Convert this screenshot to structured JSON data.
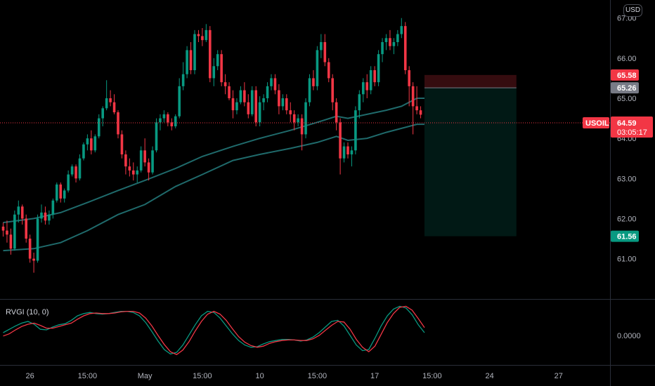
{
  "currency_button": "USD",
  "chart_data": {
    "type": "candlestick",
    "symbol": "USOIL",
    "last_price": "64.59",
    "countdown": "03:05:17",
    "y_ticks": [
      "67.00",
      "66.00",
      "65.00",
      "64.00",
      "63.00",
      "62.00",
      "61.00"
    ],
    "y_tick_values": [
      67,
      66,
      65,
      64,
      63,
      62,
      61
    ],
    "ylim": [
      60.1,
      67.45
    ],
    "x_ticks": [
      "26",
      "15:00",
      "May",
      "15:00",
      "10",
      "15:00",
      "17",
      "15:00",
      "24",
      "27"
    ],
    "x_tick_index": [
      7,
      22,
      37,
      52,
      67,
      82,
      97,
      112,
      127,
      145
    ],
    "candle_count": 110,
    "candles": [
      [
        61.8,
        61.9,
        61.55,
        61.7
      ],
      [
        61.7,
        61.95,
        61.4,
        61.6
      ],
      [
        61.6,
        61.75,
        61.1,
        61.25
      ],
      [
        61.25,
        62.2,
        61.2,
        62.1
      ],
      [
        62.1,
        62.45,
        61.9,
        62.3
      ],
      [
        62.3,
        62.35,
        61.85,
        62.0
      ],
      [
        62.0,
        62.1,
        61.4,
        61.5
      ],
      [
        61.5,
        61.6,
        60.9,
        61.0
      ],
      [
        61.0,
        61.15,
        60.65,
        60.95
      ],
      [
        60.95,
        62.1,
        60.9,
        62.0
      ],
      [
        62.0,
        62.35,
        61.9,
        62.15
      ],
      [
        62.15,
        62.3,
        61.85,
        61.95
      ],
      [
        61.95,
        62.2,
        61.85,
        62.1
      ],
      [
        62.1,
        62.5,
        62.0,
        62.45
      ],
      [
        62.45,
        62.9,
        62.4,
        62.85
      ],
      [
        62.85,
        62.9,
        62.4,
        62.5
      ],
      [
        62.5,
        62.75,
        62.4,
        62.7
      ],
      [
        62.7,
        63.2,
        62.65,
        63.1
      ],
      [
        63.1,
        63.35,
        63.05,
        63.3
      ],
      [
        63.3,
        63.35,
        62.9,
        63.0
      ],
      [
        63.0,
        63.6,
        62.95,
        63.5
      ],
      [
        63.5,
        63.9,
        63.45,
        63.85
      ],
      [
        63.85,
        64.1,
        63.7,
        64.0
      ],
      [
        64.0,
        64.2,
        63.6,
        63.7
      ],
      [
        63.7,
        64.1,
        63.65,
        64.05
      ],
      [
        64.05,
        64.6,
        64.0,
        64.5
      ],
      [
        64.5,
        64.8,
        64.3,
        64.75
      ],
      [
        64.75,
        65.45,
        64.7,
        65.0
      ],
      [
        65.0,
        65.2,
        64.8,
        64.9
      ],
      [
        64.9,
        65.1,
        64.6,
        64.65
      ],
      [
        64.65,
        64.7,
        64.0,
        64.1
      ],
      [
        64.1,
        64.2,
        63.5,
        63.6
      ],
      [
        63.6,
        63.7,
        63.1,
        63.3
      ],
      [
        63.3,
        63.5,
        63.05,
        63.2
      ],
      [
        63.2,
        63.4,
        62.95,
        63.1
      ],
      [
        63.1,
        63.3,
        62.9,
        63.2
      ],
      [
        63.2,
        63.8,
        63.15,
        63.7
      ],
      [
        63.7,
        64.0,
        63.3,
        63.4
      ],
      [
        63.4,
        63.5,
        62.95,
        63.15
      ],
      [
        63.15,
        63.8,
        63.1,
        63.7
      ],
      [
        63.7,
        64.5,
        63.65,
        64.4
      ],
      [
        64.4,
        64.6,
        64.2,
        64.5
      ],
      [
        64.5,
        64.7,
        64.4,
        64.6
      ],
      [
        64.6,
        64.65,
        64.3,
        64.4
      ],
      [
        64.4,
        64.5,
        64.2,
        64.3
      ],
      [
        64.3,
        64.6,
        64.25,
        64.55
      ],
      [
        64.55,
        65.5,
        64.5,
        65.3
      ],
      [
        65.3,
        65.9,
        65.2,
        65.6
      ],
      [
        65.6,
        66.3,
        65.5,
        66.2
      ],
      [
        66.2,
        66.4,
        65.6,
        65.7
      ],
      [
        65.7,
        66.7,
        65.6,
        66.6
      ],
      [
        66.6,
        66.7,
        66.4,
        66.55
      ],
      [
        66.55,
        66.75,
        66.3,
        66.45
      ],
      [
        66.45,
        66.85,
        66.4,
        66.7
      ],
      [
        66.7,
        66.8,
        65.4,
        65.5
      ],
      [
        65.5,
        66.0,
        65.3,
        65.8
      ],
      [
        65.8,
        66.2,
        65.7,
        66.1
      ],
      [
        66.1,
        66.2,
        65.3,
        65.4
      ],
      [
        65.4,
        65.6,
        65.1,
        65.3
      ],
      [
        65.3,
        65.4,
        64.95,
        65.0
      ],
      [
        65.0,
        65.2,
        64.5,
        64.7
      ],
      [
        64.7,
        65.0,
        64.6,
        64.9
      ],
      [
        64.9,
        65.3,
        64.85,
        65.2
      ],
      [
        65.2,
        65.4,
        64.8,
        64.9
      ],
      [
        64.9,
        65.1,
        64.5,
        64.6
      ],
      [
        64.6,
        65.3,
        64.55,
        65.2
      ],
      [
        65.2,
        65.3,
        64.3,
        64.4
      ],
      [
        64.4,
        65.05,
        64.3,
        64.9
      ],
      [
        64.9,
        65.1,
        64.7,
        65.0
      ],
      [
        65.0,
        65.4,
        64.9,
        65.3
      ],
      [
        65.3,
        65.6,
        65.2,
        65.5
      ],
      [
        65.5,
        65.6,
        65.1,
        65.2
      ],
      [
        65.2,
        65.35,
        64.6,
        64.8
      ],
      [
        64.8,
        65.1,
        64.7,
        65.0
      ],
      [
        65.0,
        65.1,
        64.6,
        64.7
      ],
      [
        64.7,
        64.9,
        64.4,
        64.6
      ],
      [
        64.6,
        64.7,
        64.2,
        64.4
      ],
      [
        64.4,
        64.6,
        64.3,
        64.5
      ],
      [
        64.5,
        64.6,
        63.7,
        64.1
      ],
      [
        64.1,
        65.0,
        64.0,
        64.9
      ],
      [
        64.9,
        65.6,
        64.8,
        65.5
      ],
      [
        65.5,
        65.7,
        65.2,
        65.3
      ],
      [
        65.3,
        66.3,
        65.2,
        66.2
      ],
      [
        66.2,
        66.6,
        66.0,
        66.4
      ],
      [
        66.4,
        66.6,
        65.8,
        65.9
      ],
      [
        65.9,
        66.0,
        65.4,
        65.5
      ],
      [
        65.5,
        65.6,
        64.7,
        64.9
      ],
      [
        64.9,
        65.0,
        64.2,
        64.4
      ],
      [
        64.4,
        64.5,
        63.1,
        63.5
      ],
      [
        63.5,
        63.9,
        63.4,
        63.8
      ],
      [
        63.8,
        63.9,
        63.5,
        63.6
      ],
      [
        63.6,
        63.8,
        63.3,
        63.7
      ],
      [
        63.7,
        64.8,
        63.6,
        64.7
      ],
      [
        64.7,
        65.2,
        64.5,
        65.1
      ],
      [
        65.1,
        65.5,
        64.9,
        65.4
      ],
      [
        65.4,
        65.6,
        65.0,
        65.2
      ],
      [
        65.2,
        65.8,
        65.1,
        65.7
      ],
      [
        65.7,
        65.8,
        65.3,
        65.4
      ],
      [
        65.4,
        66.2,
        65.3,
        66.1
      ],
      [
        66.1,
        66.5,
        65.9,
        66.4
      ],
      [
        66.4,
        66.6,
        66.2,
        66.5
      ],
      [
        66.5,
        66.7,
        66.2,
        66.3
      ],
      [
        66.3,
        66.5,
        66.1,
        66.4
      ],
      [
        66.4,
        66.7,
        66.3,
        66.6
      ],
      [
        66.6,
        67.0,
        66.5,
        66.8
      ],
      [
        66.8,
        66.9,
        65.6,
        65.7
      ],
      [
        65.7,
        65.8,
        64.8,
        65.3
      ],
      [
        65.3,
        65.4,
        64.1,
        64.8
      ],
      [
        64.8,
        65.3,
        64.6,
        64.7
      ],
      [
        64.7,
        64.8,
        64.5,
        64.59
      ]
    ],
    "ma_fast": [
      [
        0,
        61.9
      ],
      [
        8,
        62.0
      ],
      [
        15,
        62.15
      ],
      [
        22,
        62.4
      ],
      [
        30,
        62.7
      ],
      [
        37,
        62.95
      ],
      [
        45,
        63.25
      ],
      [
        52,
        63.55
      ],
      [
        60,
        63.8
      ],
      [
        67,
        64.0
      ],
      [
        75,
        64.2
      ],
      [
        82,
        64.4
      ],
      [
        87,
        64.55
      ],
      [
        90,
        64.5
      ],
      [
        95,
        64.6
      ],
      [
        100,
        64.7
      ],
      [
        104,
        64.8
      ],
      [
        108,
        65.0
      ],
      [
        110,
        65.0
      ]
    ],
    "ma_slow": [
      [
        0,
        61.2
      ],
      [
        8,
        61.25
      ],
      [
        15,
        61.4
      ],
      [
        22,
        61.7
      ],
      [
        30,
        62.1
      ],
      [
        37,
        62.35
      ],
      [
        45,
        62.8
      ],
      [
        52,
        63.1
      ],
      [
        60,
        63.45
      ],
      [
        67,
        63.6
      ],
      [
        75,
        63.75
      ],
      [
        82,
        63.9
      ],
      [
        87,
        64.05
      ],
      [
        90,
        63.95
      ],
      [
        95,
        64.0
      ],
      [
        100,
        64.15
      ],
      [
        104,
        64.25
      ],
      [
        108,
        64.35
      ],
      [
        110,
        64.35
      ]
    ],
    "position": {
      "entry": 65.26,
      "stop": 65.58,
      "target": 61.56,
      "start_index": 110,
      "end_index": 134,
      "labels": {
        "stop": "65.58",
        "entry": "65.26",
        "target": "61.56"
      }
    },
    "indicator": {
      "title": "RVGI (10, 0)",
      "zero_label": "0.0000",
      "ylim": [
        -0.55,
        0.55
      ],
      "series": [
        {
          "color": "#089981",
          "values": [
            0.0,
            0.06,
            0.12,
            0.17,
            0.2,
            0.15,
            0.06,
            0.05,
            0.1,
            0.14,
            0.16,
            0.22,
            0.3,
            0.34,
            0.36,
            0.34,
            0.33,
            0.34,
            0.36,
            0.38,
            0.38,
            0.36,
            0.3,
            0.18,
            0.02,
            -0.15,
            -0.3,
            -0.38,
            -0.35,
            -0.22,
            -0.04,
            0.14,
            0.3,
            0.38,
            0.36,
            0.26,
            0.12,
            -0.02,
            -0.14,
            -0.22,
            -0.26,
            -0.25,
            -0.2,
            -0.16,
            -0.14,
            -0.12,
            -0.12,
            -0.13,
            -0.15,
            -0.13,
            -0.08,
            0.0,
            0.1,
            0.2,
            0.22,
            0.12,
            -0.05,
            -0.22,
            -0.32,
            -0.3,
            -0.1,
            0.12,
            0.3,
            0.42,
            0.47,
            0.44,
            0.32,
            0.14,
            0.0
          ]
        },
        {
          "color": "#f23645",
          "values": [
            -0.06,
            -0.02,
            0.05,
            0.11,
            0.15,
            0.17,
            0.13,
            0.08,
            0.08,
            0.11,
            0.14,
            0.17,
            0.24,
            0.3,
            0.34,
            0.35,
            0.34,
            0.34,
            0.35,
            0.37,
            0.38,
            0.38,
            0.35,
            0.26,
            0.12,
            -0.05,
            -0.21,
            -0.34,
            -0.39,
            -0.31,
            -0.16,
            0.03,
            0.2,
            0.33,
            0.38,
            0.33,
            0.22,
            0.07,
            -0.07,
            -0.17,
            -0.23,
            -0.26,
            -0.24,
            -0.19,
            -0.16,
            -0.14,
            -0.13,
            -0.13,
            -0.14,
            -0.14,
            -0.11,
            -0.05,
            0.04,
            0.13,
            0.2,
            0.19,
            0.06,
            -0.12,
            -0.26,
            -0.34,
            -0.24,
            -0.03,
            0.18,
            0.34,
            0.45,
            0.47,
            0.4,
            0.25,
            0.09
          ]
        }
      ]
    }
  }
}
